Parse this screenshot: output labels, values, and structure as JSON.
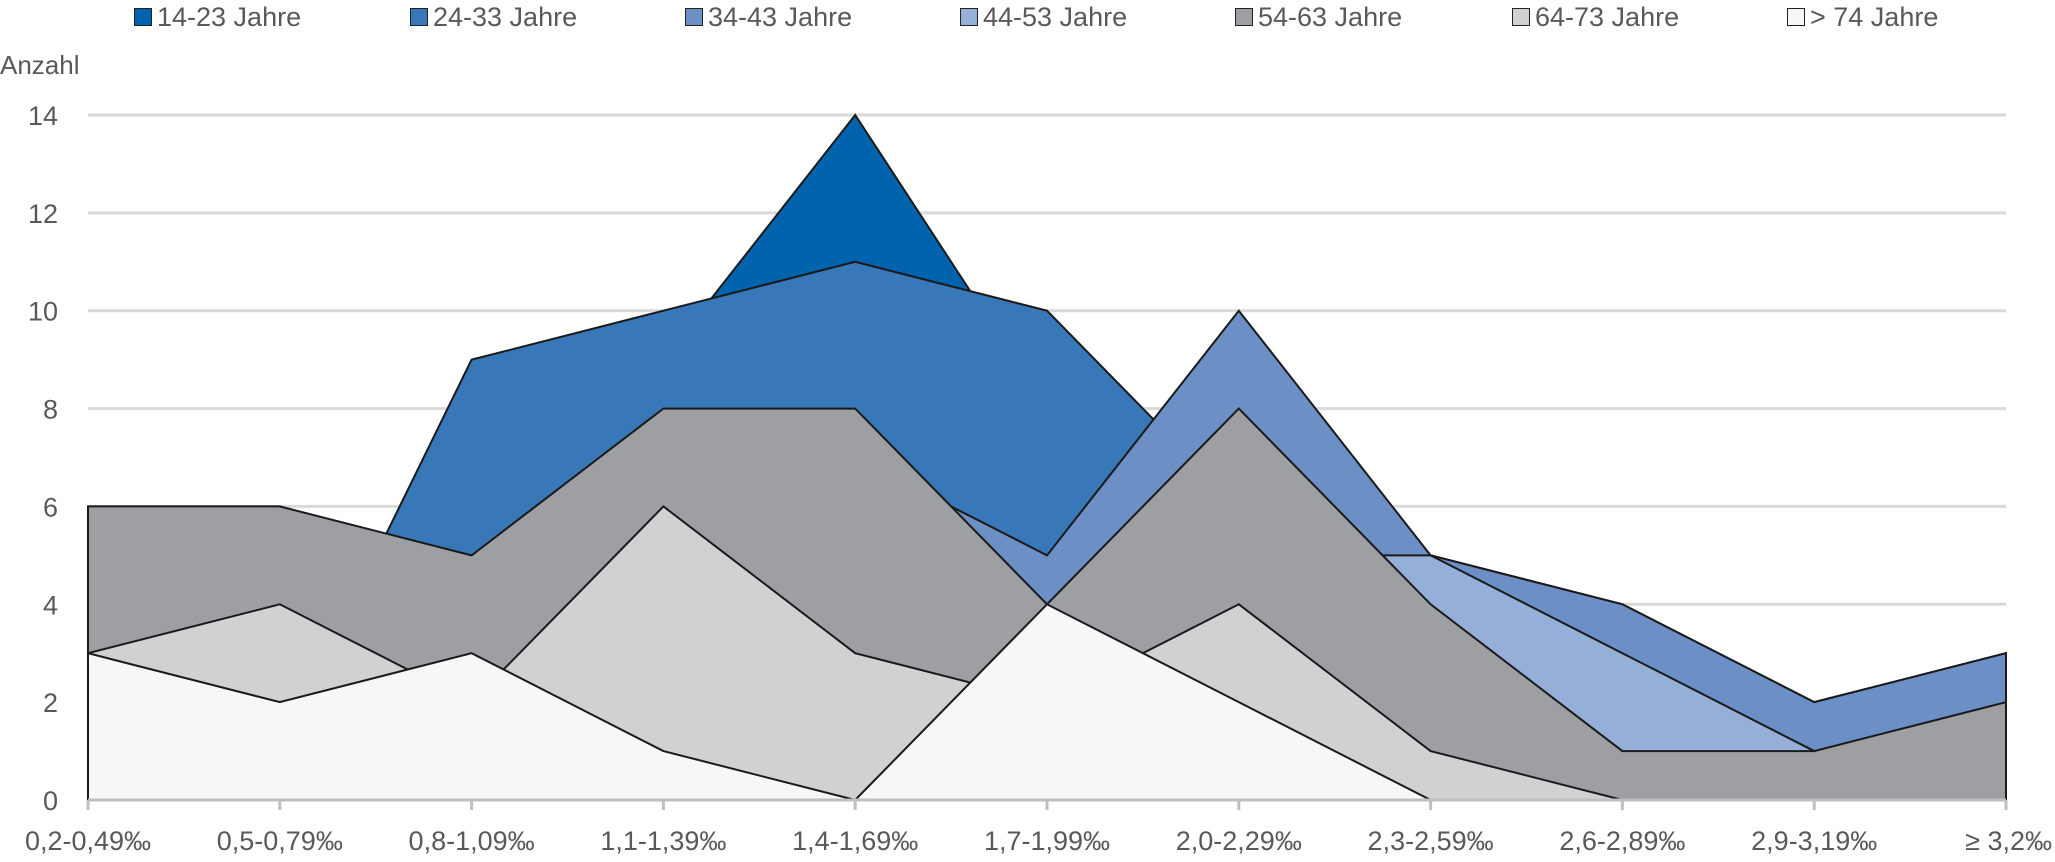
{
  "chart_data": {
    "type": "area",
    "ylabel": "Anzahl",
    "xlabel": "",
    "ylim": [
      0,
      14
    ],
    "yticks": [
      0,
      2,
      4,
      6,
      8,
      10,
      12,
      14
    ],
    "grid": true,
    "legend_position": "top",
    "categories": [
      "0,2-0,49‰",
      "0,5-0,79‰",
      "0,8-1,09‰",
      "1,1-1,39‰",
      "1,4-1,69‰",
      "1,7-1,99‰",
      "2,0-2,29‰",
      "2,3-2,59‰",
      "2,6-2,89‰",
      "2,9-3,19‰",
      "≥ 3,2‰"
    ],
    "series": [
      {
        "name": "14-23 Jahre",
        "color": "#0063AD",
        "values": [
          2,
          2,
          5,
          9,
          14,
          8,
          7,
          5,
          4,
          2,
          3
        ]
      },
      {
        "name": "24-33 Jahre",
        "color": "#3878B8",
        "values": [
          1,
          1,
          9,
          10,
          11,
          10,
          6,
          4,
          3,
          1,
          1
        ]
      },
      {
        "name": "34-43 Jahre",
        "color": "#6C8FC6",
        "values": [
          1,
          1,
          3,
          4,
          7,
          5,
          10,
          5,
          4,
          2,
          3
        ]
      },
      {
        "name": "44-53 Jahre",
        "color": "#96AFD9",
        "values": [
          1,
          1,
          2,
          3,
          5,
          4,
          5,
          5,
          3,
          1,
          1
        ]
      },
      {
        "name": "54-63 Jahre",
        "color": "#9D9FA3",
        "values": [
          6,
          6,
          5,
          8,
          8,
          4,
          8,
          4,
          1,
          1,
          2
        ]
      },
      {
        "name": "64-73 Jahre",
        "color": "#D0D1D3",
        "values": [
          3,
          4,
          2,
          6,
          3,
          2,
          4,
          1,
          0,
          0,
          0
        ]
      },
      {
        "name": "> 74 Jahre",
        "color": "#F6F7F6",
        "values": [
          3,
          2,
          3,
          1,
          0,
          4,
          2,
          0,
          0,
          0,
          0
        ]
      }
    ]
  }
}
